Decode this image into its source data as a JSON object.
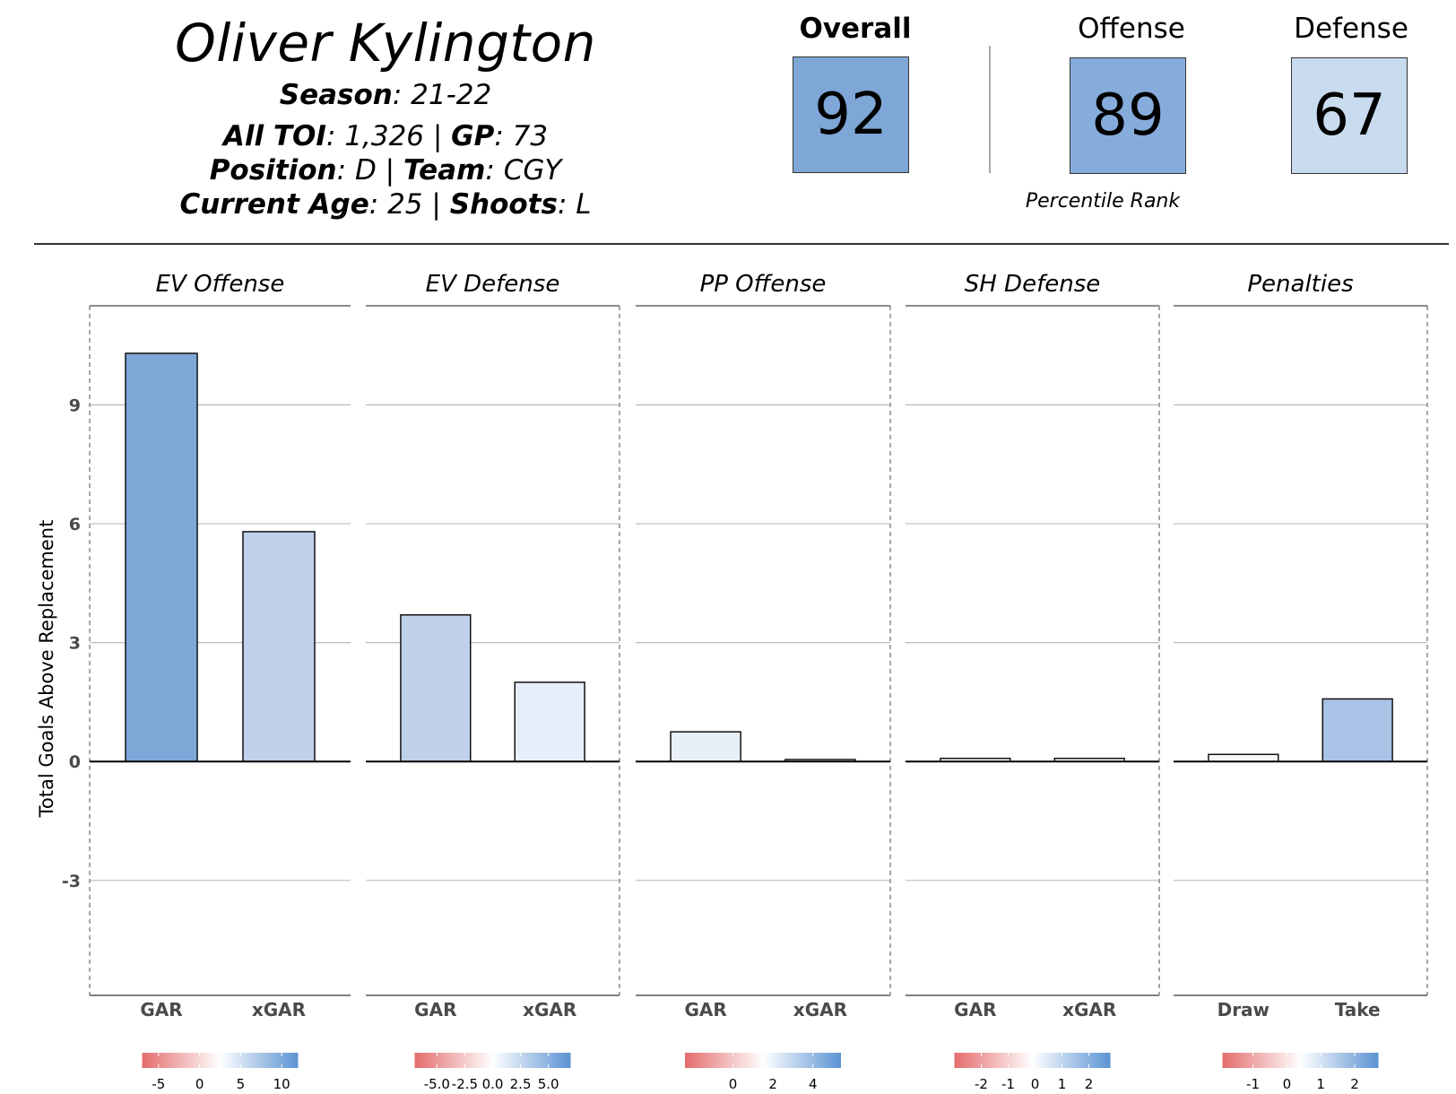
{
  "player": {
    "name": "Oliver Kylington",
    "season_label": "Season",
    "season": "21-22",
    "toi_label": "All TOI",
    "toi": "1,326",
    "gp_label": "GP",
    "gp": "73",
    "position_label": "Position",
    "position": "D",
    "team_label": "Team",
    "team": "CGY",
    "age_label": "Current Age",
    "age": "25",
    "shoots_label": "Shoots",
    "shoots": "L"
  },
  "ranks": {
    "overall": {
      "label": "Overall",
      "value": "92",
      "color": "#7ea7d8"
    },
    "offense": {
      "label": "Offense",
      "value": "89",
      "color": "#86acdb"
    },
    "defense": {
      "label": "Defense",
      "value": "67",
      "color": "#c9dbef"
    },
    "caption": "Percentile Rank"
  },
  "chart_data": {
    "type": "bar",
    "ylabel": "Total Goals Above Replacement",
    "ylim": [
      -5.9,
      11.5
    ],
    "yticks": [
      -3,
      0,
      3,
      6,
      9
    ],
    "grid": true,
    "panels": [
      {
        "title": "EV Offense",
        "categories": [
          "GAR",
          "xGAR"
        ],
        "values": [
          10.3,
          5.8
        ],
        "colors": [
          "#7ea7d8",
          "#bfd1eb"
        ],
        "legend": {
          "min": -7,
          "max": 12,
          "ticks": [
            -5,
            0,
            5,
            10
          ],
          "labels": [
            "-5",
            "0",
            "5",
            "10"
          ]
        }
      },
      {
        "title": "EV Defense",
        "categories": [
          "GAR",
          "xGAR"
        ],
        "values": [
          3.7,
          2.0
        ],
        "colors": [
          "#c0d2eb",
          "#e8eef9"
        ],
        "legend": {
          "min": -7,
          "max": 7,
          "ticks": [
            -5,
            -2.5,
            0,
            2.5,
            5
          ],
          "labels": [
            "-5.0",
            "-2.5",
            "0.0",
            "2.5",
            "5.0"
          ]
        }
      },
      {
        "title": "PP Offense",
        "categories": [
          "GAR",
          "xGAR"
        ],
        "values": [
          0.75,
          0.05
        ],
        "colors": [
          "#e9eff9",
          "#f9fafd"
        ],
        "legend": {
          "min": -2.4,
          "max": 5.4,
          "ticks": [
            0,
            2,
            4
          ],
          "labels": [
            "0",
            "2",
            "4"
          ]
        }
      },
      {
        "title": "SH Defense",
        "categories": [
          "GAR",
          "xGAR"
        ],
        "values": [
          0.08,
          0.08
        ],
        "colors": [
          "#f9fafd",
          "#f9fafd"
        ],
        "legend": {
          "min": -3.0,
          "max": 2.8,
          "ticks": [
            -2,
            -1,
            0,
            1,
            2
          ],
          "labels": [
            "-2",
            "-1",
            "0",
            "1",
            "2"
          ]
        }
      },
      {
        "title": "Penalties",
        "categories": [
          "Draw",
          "Take"
        ],
        "values": [
          0.18,
          1.58
        ],
        "colors": [
          "#f8f9fd",
          "#a9c3e6"
        ],
        "legend": {
          "min": -1.9,
          "max": 2.7,
          "ticks": [
            -1,
            0,
            1,
            2
          ],
          "labels": [
            "-1",
            "0",
            "1",
            "2"
          ]
        }
      }
    ],
    "colorscale": {
      "low": "#e46c6c",
      "mid": "#ffffff",
      "high": "#5b93d3"
    }
  }
}
